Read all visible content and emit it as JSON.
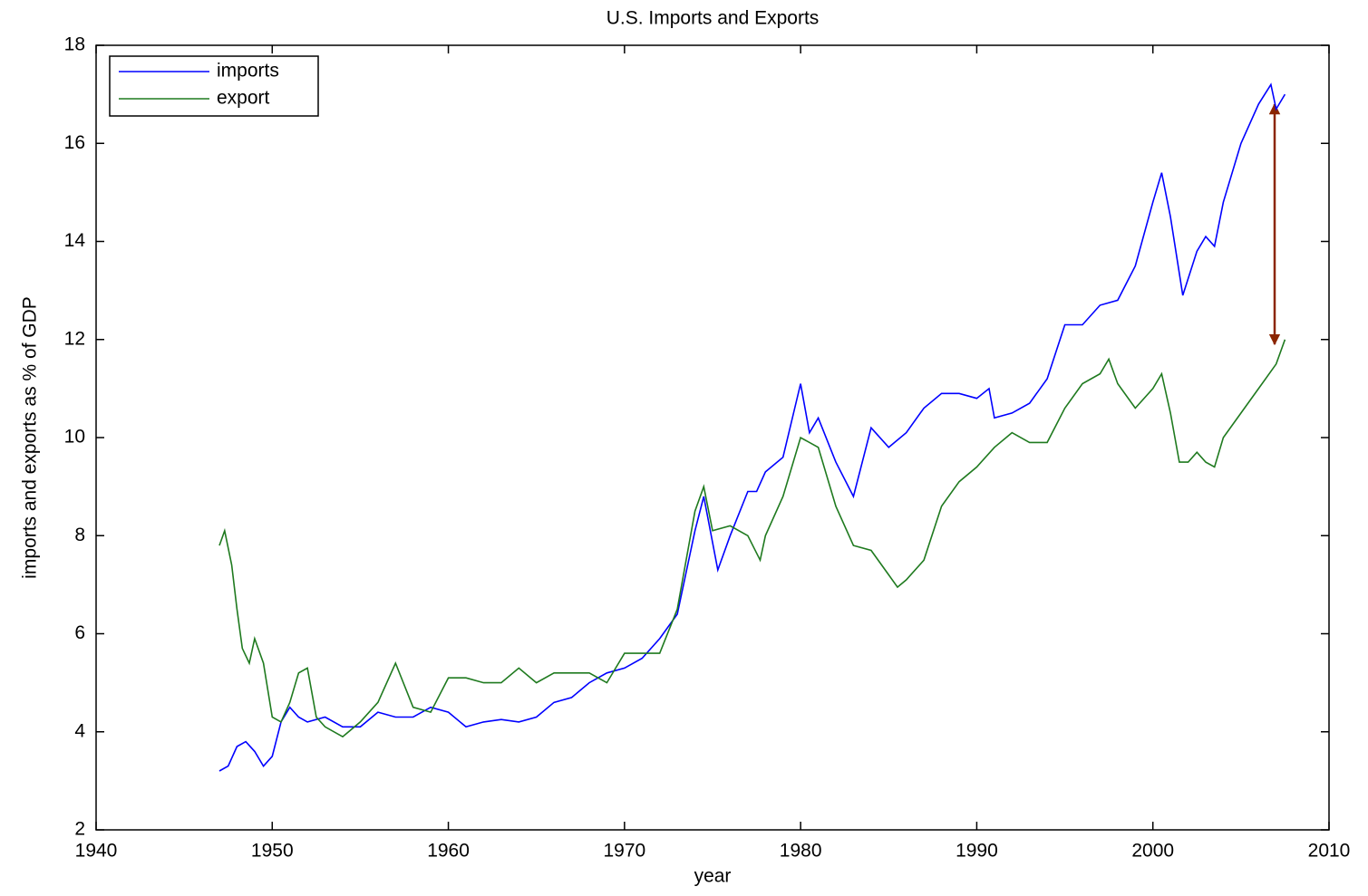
{
  "chart_data": {
    "type": "line",
    "title": "U.S. Imports and Exports",
    "xlabel": "year",
    "ylabel": "imports and exports as % of GDP",
    "xlim": [
      1940,
      2010
    ],
    "xticks": [
      1940,
      1950,
      1960,
      1970,
      1980,
      1990,
      2000,
      2010
    ],
    "ylim": [
      2,
      18
    ],
    "yticks": [
      2,
      4,
      6,
      8,
      10,
      12,
      14,
      16,
      18
    ],
    "grid": false,
    "legend": "upper left",
    "series": [
      {
        "name": "imports",
        "color": "#0000ff",
        "x": [
          1947,
          1947.5,
          1948,
          1948.5,
          1949,
          1949.5,
          1950,
          1950.5,
          1951,
          1951.5,
          1952,
          1953,
          1954,
          1955,
          1956,
          1957,
          1958,
          1959,
          1960,
          1961,
          1962,
          1963,
          1964,
          1965,
          1966,
          1967,
          1968,
          1969,
          1970,
          1971,
          1972,
          1973,
          1974,
          1974.5,
          1975.3,
          1976,
          1977,
          1977.5,
          1978,
          1979,
          1980,
          1980.5,
          1981,
          1982,
          1983,
          1984,
          1985,
          1986,
          1987,
          1988,
          1989,
          1990,
          1990.7,
          1991,
          1992,
          1993,
          1994,
          1995,
          1996,
          1997,
          1998,
          1999,
          2000,
          2000.5,
          2001,
          2001.7,
          2002.5,
          2003,
          2003.5,
          2004,
          2005,
          2006,
          2006.7,
          2007,
          2007.5
        ],
        "values": [
          3.2,
          3.3,
          3.7,
          3.8,
          3.6,
          3.3,
          3.5,
          4.2,
          4.5,
          4.3,
          4.2,
          4.3,
          4.1,
          4.1,
          4.4,
          4.3,
          4.3,
          4.5,
          4.4,
          4.1,
          4.2,
          4.25,
          4.2,
          4.3,
          4.6,
          4.7,
          5.0,
          5.2,
          5.3,
          5.5,
          5.9,
          6.4,
          8.1,
          8.8,
          7.3,
          8.0,
          8.9,
          8.9,
          9.3,
          9.6,
          11.1,
          10.1,
          10.4,
          9.5,
          8.8,
          10.2,
          9.8,
          10.1,
          10.6,
          10.9,
          10.9,
          10.8,
          11.0,
          10.4,
          10.5,
          10.7,
          11.2,
          12.3,
          12.3,
          12.7,
          12.8,
          13.5,
          14.8,
          15.4,
          14.5,
          12.9,
          13.8,
          14.1,
          13.9,
          14.8,
          16.0,
          16.8,
          17.2,
          16.7,
          17.0
        ]
      },
      {
        "name": "export",
        "color": "#1f7a1f",
        "x": [
          1947,
          1947.3,
          1947.7,
          1948,
          1948.3,
          1948.7,
          1949,
          1949.5,
          1950,
          1950.5,
          1951,
          1951.5,
          1952,
          1952.5,
          1953,
          1954,
          1955,
          1956,
          1957,
          1958,
          1959,
          1960,
          1961,
          1962,
          1963,
          1964,
          1965,
          1966,
          1967,
          1968,
          1969,
          1970,
          1971,
          1972,
          1973,
          1974,
          1974.5,
          1975,
          1976,
          1977,
          1977.7,
          1978,
          1979,
          1980,
          1981,
          1982,
          1983,
          1984,
          1985,
          1985.5,
          1986,
          1987,
          1988,
          1989,
          1990,
          1991,
          1992,
          1993,
          1994,
          1995,
          1996,
          1997,
          1997.5,
          1998,
          1999,
          2000,
          2000.5,
          2001,
          2001.5,
          2002,
          2002.5,
          2003,
          2003.5,
          2004,
          2005,
          2006,
          2007,
          2007.5
        ],
        "values": [
          7.8,
          8.1,
          7.4,
          6.5,
          5.7,
          5.4,
          5.9,
          5.4,
          4.3,
          4.2,
          4.6,
          5.2,
          5.3,
          4.3,
          4.1,
          3.9,
          4.2,
          4.6,
          5.4,
          4.5,
          4.4,
          5.1,
          5.1,
          5.0,
          5.0,
          5.3,
          5.0,
          5.2,
          5.2,
          5.2,
          5.0,
          5.6,
          5.6,
          5.6,
          6.5,
          8.5,
          9.0,
          8.1,
          8.2,
          8.0,
          7.5,
          8.0,
          8.8,
          10.0,
          9.8,
          8.6,
          7.8,
          7.7,
          7.2,
          6.95,
          7.1,
          7.5,
          8.6,
          9.1,
          9.4,
          9.8,
          10.1,
          9.9,
          9.9,
          10.6,
          11.1,
          11.3,
          11.6,
          11.1,
          10.6,
          11.0,
          11.3,
          10.5,
          9.5,
          9.5,
          9.7,
          9.5,
          9.4,
          10.0,
          10.5,
          11.0,
          11.5,
          12.0
        ]
      }
    ]
  }
}
